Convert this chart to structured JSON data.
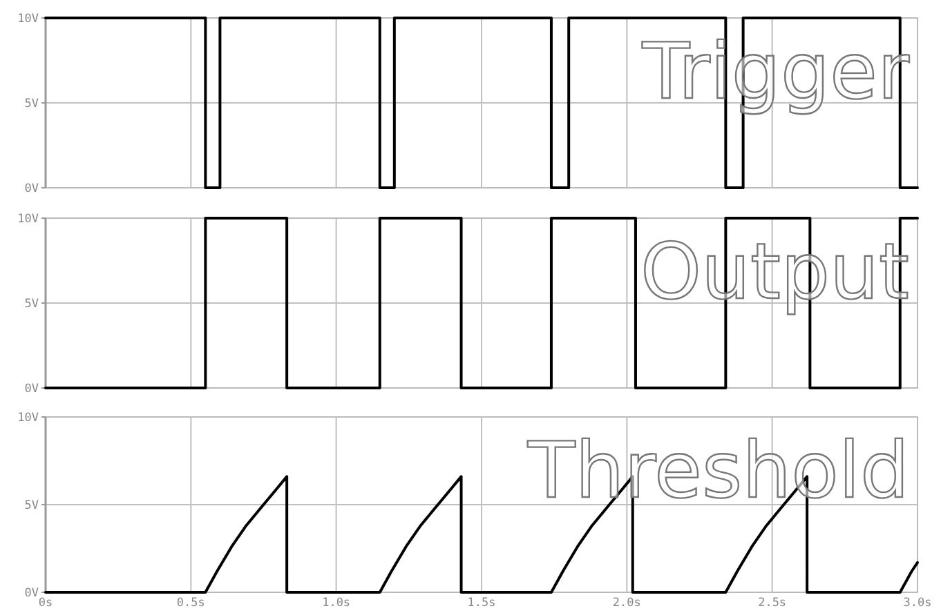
{
  "chart_data": [
    {
      "type": "line",
      "title": "Trigger",
      "xlim": [
        0,
        3.0
      ],
      "ylim": [
        0,
        10
      ],
      "yticks": [
        {
          "value": 0,
          "label": "0V"
        },
        {
          "value": 5,
          "label": "5V"
        },
        {
          "value": 10,
          "label": "10V"
        }
      ],
      "xticks": [
        0,
        0.5,
        1,
        1.5,
        2,
        2.5,
        3
      ],
      "tick_labels": "y",
      "grid": true,
      "series": [
        {
          "color": "#000000",
          "x": [
            0,
            0.55,
            0.55,
            0.6,
            0.6,
            1.15,
            1.15,
            1.2,
            1.2,
            1.74,
            1.74,
            1.8,
            1.8,
            2.34,
            2.34,
            2.4,
            2.4,
            2.94,
            2.94,
            3.0
          ],
          "values": [
            10,
            10,
            0,
            0,
            10,
            10,
            0,
            0,
            10,
            10,
            0,
            0,
            10,
            10,
            0,
            0,
            10,
            10,
            0,
            0
          ]
        }
      ]
    },
    {
      "type": "line",
      "title": "Output",
      "xlim": [
        0,
        3.0
      ],
      "ylim": [
        0,
        10
      ],
      "yticks": [
        {
          "value": 0,
          "label": "0V"
        },
        {
          "value": 5,
          "label": "5V"
        },
        {
          "value": 10,
          "label": "10V"
        }
      ],
      "xticks": [
        0,
        0.5,
        1,
        1.5,
        2,
        2.5,
        3
      ],
      "tick_labels": "y",
      "grid": true,
      "series": [
        {
          "color": "#000000",
          "x": [
            0,
            0.55,
            0.55,
            0.83,
            0.83,
            1.15,
            1.15,
            1.43,
            1.43,
            1.74,
            1.74,
            2.03,
            2.03,
            2.34,
            2.34,
            2.63,
            2.63,
            2.94,
            2.94,
            3.0
          ],
          "values": [
            0,
            0,
            10,
            10,
            0,
            0,
            10,
            10,
            0,
            0,
            10,
            10,
            0,
            0,
            10,
            10,
            0,
            0,
            10,
            10
          ]
        }
      ]
    },
    {
      "type": "line",
      "title": "Threshold",
      "xlim": [
        0,
        3.0
      ],
      "ylim": [
        0,
        10
      ],
      "yticks": [
        {
          "value": 0,
          "label": "0V"
        },
        {
          "value": 5,
          "label": "5V"
        },
        {
          "value": 10,
          "label": "10V"
        }
      ],
      "xticks": [
        {
          "value": 0,
          "label": "0s"
        },
        {
          "value": 0.5,
          "label": "0.5s"
        },
        {
          "value": 1,
          "label": "1.0s"
        },
        {
          "value": 1.5,
          "label": "1.5s"
        },
        {
          "value": 2,
          "label": "2.0s"
        },
        {
          "value": 2.5,
          "label": "2.5s"
        },
        {
          "value": 3,
          "label": "3.0s"
        }
      ],
      "grid": true,
      "series": [
        {
          "color": "#000000",
          "x": [
            0,
            0.55,
            0.59,
            0.64,
            0.69,
            0.74,
            0.79,
            0.83,
            0.83,
            1.15,
            1.19,
            1.24,
            1.29,
            1.34,
            1.39,
            1.43,
            1.43,
            1.74,
            1.78,
            1.83,
            1.88,
            1.93,
            1.98,
            2.02,
            2.02,
            2.34,
            2.38,
            2.43,
            2.48,
            2.53,
            2.58,
            2.62,
            2.62,
            2.94,
            2.98,
            3.0
          ],
          "values": [
            0,
            0,
            1.2,
            2.6,
            3.8,
            4.8,
            5.8,
            6.6,
            0,
            0,
            1.2,
            2.6,
            3.8,
            4.8,
            5.8,
            6.6,
            0,
            0,
            1.2,
            2.6,
            3.8,
            4.8,
            5.8,
            6.6,
            0,
            0,
            1.2,
            2.6,
            3.8,
            4.8,
            5.8,
            6.6,
            0,
            0,
            1.2,
            1.7
          ]
        }
      ]
    }
  ]
}
